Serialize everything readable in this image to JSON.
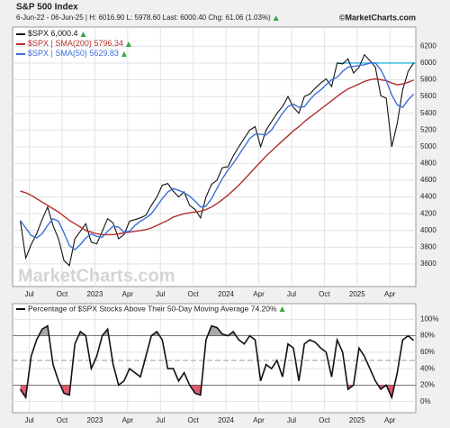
{
  "chart_data": [
    {
      "type": "line",
      "title": "S&P 500 Index",
      "subtitle": "6-Jun-22 - 06-Jun-25 | H: 6016.90 L: 5978.60 Last: 6000.40 Chg: 61.06 (1.03%)",
      "credit": "©MarketCharts.com",
      "watermark": "MarketCharts.com",
      "x": [
        0,
        0.5,
        1,
        1.5,
        2,
        2.5,
        3,
        3.5,
        4,
        4.5,
        5,
        5.5,
        6,
        6.5,
        7,
        7.5,
        8,
        8.5,
        9,
        9.5,
        10,
        10.5,
        11,
        11.5,
        12,
        12.5,
        13,
        13.5,
        14,
        14.5,
        15,
        15.5,
        16,
        16.5,
        17,
        17.5,
        18,
        18.5,
        19,
        19.5,
        20,
        20.5,
        21,
        21.5,
        22,
        22.5,
        23,
        23.5,
        24,
        24.5,
        25,
        25.5,
        26,
        26.5,
        27,
        27.5,
        28,
        28.5,
        29,
        29.5,
        30,
        30.5,
        31,
        31.5,
        32,
        32.5,
        33,
        33.5,
        34,
        34.5,
        35,
        35.5,
        36
      ],
      "series": [
        {
          "name": "$SPX",
          "legend_value": "6,000.4",
          "color": "#111111",
          "width": 1.1,
          "values": [
            4120,
            3670,
            3830,
            3960,
            4130,
            4280,
            4060,
            3900,
            3640,
            3580,
            3900,
            3990,
            4080,
            3860,
            3840,
            3990,
            4140,
            4090,
            3900,
            3950,
            4110,
            4130,
            4150,
            4180,
            4300,
            4400,
            4540,
            4560,
            4470,
            4400,
            4460,
            4300,
            4250,
            4150,
            4400,
            4550,
            4600,
            4750,
            4760,
            4890,
            5000,
            5100,
            5200,
            5240,
            5000,
            5200,
            5300,
            5400,
            5480,
            5600,
            5470,
            5400,
            5600,
            5630,
            5700,
            5760,
            5810,
            5720,
            6000,
            5990,
            6050,
            5880,
            5950,
            6100,
            6030,
            5950,
            5610,
            5580,
            5000,
            5280,
            5680,
            5900,
            6000
          ]
        },
        {
          "name": "$SPX | SMA(200)",
          "legend_value": "5796.34",
          "color": "#b0302a",
          "width": 1.4,
          "values": [
            4470,
            4450,
            4420,
            4380,
            4340,
            4300,
            4260,
            4220,
            4170,
            4120,
            4080,
            4040,
            4000,
            3980,
            3960,
            3950,
            3950,
            3950,
            3960,
            3970,
            3980,
            3990,
            4000,
            4010,
            4030,
            4060,
            4090,
            4120,
            4160,
            4180,
            4200,
            4210,
            4220,
            4230,
            4250,
            4280,
            4320,
            4370,
            4420,
            4480,
            4540,
            4610,
            4680,
            4750,
            4820,
            4890,
            4950,
            5010,
            5070,
            5130,
            5190,
            5240,
            5300,
            5350,
            5400,
            5450,
            5500,
            5550,
            5600,
            5650,
            5690,
            5720,
            5750,
            5780,
            5800,
            5810,
            5800,
            5790,
            5760,
            5740,
            5750,
            5770,
            5796.34
          ]
        },
        {
          "name": "$SPX | SMA(50)",
          "legend_value": "5629.83",
          "color": "#3a6fd8",
          "width": 1.4,
          "values": [
            4120,
            4030,
            3940,
            3910,
            3960,
            4060,
            4140,
            4110,
            3970,
            3820,
            3770,
            3830,
            3910,
            3960,
            3930,
            3920,
            3990,
            4050,
            4040,
            3980,
            3990,
            4060,
            4110,
            4150,
            4200,
            4290,
            4380,
            4460,
            4500,
            4480,
            4450,
            4410,
            4350,
            4280,
            4290,
            4380,
            4500,
            4620,
            4720,
            4800,
            4900,
            5000,
            5100,
            5150,
            5150,
            5140,
            5200,
            5300,
            5400,
            5480,
            5510,
            5470,
            5480,
            5560,
            5630,
            5680,
            5740,
            5800,
            5830,
            5900,
            5950,
            5960,
            5970,
            5980,
            6000,
            6000,
            5920,
            5790,
            5620,
            5500,
            5470,
            5560,
            5629.83
          ]
        }
      ],
      "hline": {
        "value": 6000,
        "from_x": 29,
        "color": "#2bb5d6"
      },
      "xlim": [
        -0.7,
        36.2
      ],
      "ylim": [
        3330,
        6430
      ],
      "xticks": [
        {
          "value": 0.83,
          "label": "Jul"
        },
        {
          "value": 3.83,
          "label": "Oct"
        },
        {
          "value": 6.83,
          "label": "2023"
        },
        {
          "value": 9.83,
          "label": "Apr"
        },
        {
          "value": 12.83,
          "label": "Jul"
        },
        {
          "value": 15.83,
          "label": "Oct"
        },
        {
          "value": 18.83,
          "label": "2024"
        },
        {
          "value": 21.83,
          "label": "Apr"
        },
        {
          "value": 24.83,
          "label": "Jul"
        },
        {
          "value": 27.83,
          "label": "Oct"
        },
        {
          "value": 30.83,
          "label": "2025"
        },
        {
          "value": 33.83,
          "label": "Apr"
        }
      ],
      "yticks": [
        3600,
        3800,
        4000,
        4200,
        4400,
        4600,
        4800,
        5000,
        5200,
        5400,
        5600,
        5800,
        6000,
        6200
      ],
      "grid": true
    },
    {
      "type": "line",
      "title": "Percentage of $SPX Stocks Above Their 50-Day Moving Average 74.20%",
      "x": [
        0,
        0.5,
        1,
        1.5,
        2,
        2.5,
        3,
        3.5,
        4,
        4.5,
        5,
        5.5,
        6,
        6.5,
        7,
        7.5,
        8,
        8.5,
        9,
        9.5,
        10,
        10.5,
        11,
        11.5,
        12,
        12.5,
        13,
        13.5,
        14,
        14.5,
        15,
        15.5,
        16,
        16.5,
        17,
        17.5,
        18,
        18.5,
        19,
        19.5,
        20,
        20.5,
        21,
        21.5,
        22,
        22.5,
        23,
        23.5,
        24,
        24.5,
        25,
        25.5,
        26,
        26.5,
        27,
        27.5,
        28,
        28.5,
        29,
        29.5,
        30,
        30.5,
        31,
        31.5,
        32,
        32.5,
        33,
        33.5,
        34,
        34.5,
        35,
        35.5,
        36
      ],
      "series": [
        {
          "color": "#111111",
          "values": [
            15,
            5,
            55,
            75,
            88,
            92,
            45,
            25,
            10,
            8,
            70,
            85,
            80,
            40,
            55,
            80,
            88,
            45,
            20,
            25,
            40,
            35,
            30,
            55,
            80,
            85,
            75,
            40,
            40,
            25,
            35,
            20,
            10,
            8,
            75,
            92,
            90,
            82,
            80,
            85,
            75,
            70,
            80,
            75,
            25,
            45,
            40,
            50,
            30,
            70,
            65,
            25,
            70,
            75,
            72,
            65,
            60,
            30,
            75,
            60,
            15,
            20,
            65,
            55,
            40,
            25,
            15,
            20,
            5,
            35,
            75,
            80,
            74.2
          ]
        }
      ],
      "bands": {
        "upper": 80,
        "lower": 20,
        "mid": 50,
        "upper_fill": "#a9a9a9",
        "lower_fill": "#e05a6a"
      },
      "xlim": [
        -0.7,
        36.2
      ],
      "ylim": [
        -13.5,
        119
      ],
      "xticks": [
        {
          "value": 0.83,
          "label": "Jul"
        },
        {
          "value": 3.83,
          "label": "Oct"
        },
        {
          "value": 6.83,
          "label": "2023"
        },
        {
          "value": 9.83,
          "label": "Apr"
        },
        {
          "value": 12.83,
          "label": "Jul"
        },
        {
          "value": 15.83,
          "label": "Oct"
        },
        {
          "value": 18.83,
          "label": "2024"
        },
        {
          "value": 21.83,
          "label": "Apr"
        },
        {
          "value": 24.83,
          "label": "Jul"
        },
        {
          "value": 27.83,
          "label": "Oct"
        },
        {
          "value": 30.83,
          "label": "2025"
        },
        {
          "value": 33.83,
          "label": "Apr"
        }
      ],
      "yticks": [
        {
          "value": 0,
          "label": "0%"
        },
        {
          "value": 20,
          "label": "20%"
        },
        {
          "value": 40,
          "label": "40%"
        },
        {
          "value": 60,
          "label": "60%"
        },
        {
          "value": 80,
          "label": "80%"
        },
        {
          "value": 100,
          "label": "100%"
        }
      ],
      "grid": true
    }
  ]
}
